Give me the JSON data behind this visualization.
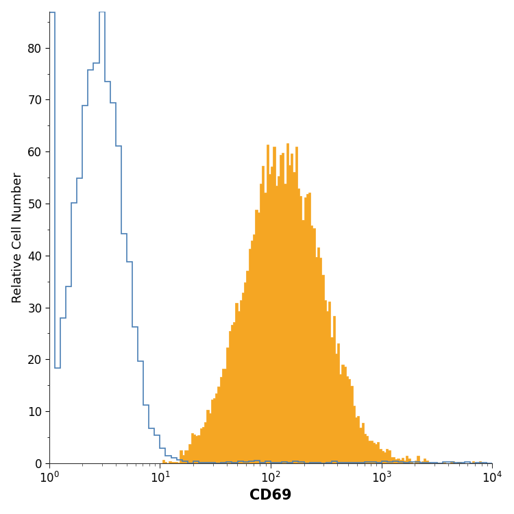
{
  "title": "",
  "xlabel": "CD69",
  "ylabel": "Relative Cell Number",
  "xlim_log": [
    1,
    10000
  ],
  "ylim": [
    0,
    87
  ],
  "yticks": [
    0,
    10,
    20,
    30,
    40,
    50,
    60,
    70,
    80
  ],
  "background_color": "#ffffff",
  "blue_color": "#4a7fb5",
  "orange_color": "#f5a623",
  "xlabel_fontsize": 15,
  "ylabel_fontsize": 13,
  "tick_fontsize": 12
}
